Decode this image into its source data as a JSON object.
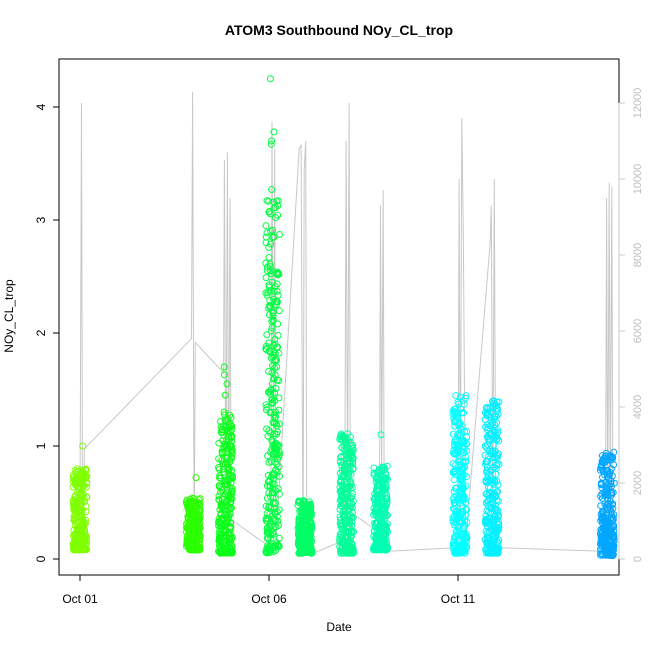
{
  "chart_data": {
    "type": "scatter",
    "title": "ATOM3 Southbound NOy_CL_trop",
    "xlabel": "Date",
    "ylabel": "NOy_CL_trop",
    "x_ticks": [
      "Oct 01",
      "Oct 06",
      "Oct 11"
    ],
    "y_ticks": [
      "0",
      "1",
      "2",
      "3",
      "4"
    ],
    "ylim": [
      0,
      4.3
    ],
    "right_axis": {
      "description": "altitude trace (grey line), unlabeled",
      "ticks": [
        "0",
        "2000",
        "4000",
        "6000",
        "8000",
        "10000",
        "12000"
      ],
      "ylim": [
        0,
        12500
      ],
      "color": "#c8c8c8"
    },
    "grid": false,
    "flights": [
      {
        "date": "2016-10-01",
        "day": 1.0,
        "min": 0.08,
        "max": 1.07,
        "outliers": [
          1.0
        ],
        "color": "#7fff00"
      },
      {
        "date": "2016-10-04",
        "day": 4.0,
        "min": 0.08,
        "max": 0.72,
        "outliers": [
          0.72
        ],
        "color": "#2bff00"
      },
      {
        "date": "2016-10-05",
        "day": 4.85,
        "min": 0.05,
        "max": 1.7,
        "outliers": [
          1.3,
          1.45,
          1.55,
          1.63,
          1.7
        ],
        "color": "#0aff1a"
      },
      {
        "date": "2016-10-06",
        "day": 6.1,
        "min": 0.05,
        "max": 4.25,
        "outliers": [
          1.0,
          1.3,
          1.5,
          1.65,
          1.9,
          2.15,
          2.3,
          2.37,
          2.45,
          3.27,
          3.67,
          3.7,
          3.78,
          4.25
        ],
        "color": "#00ff40"
      },
      {
        "date": "2016-10-07",
        "day": 6.95,
        "min": 0.05,
        "max": 0.52,
        "outliers": [],
        "color": "#00ff66"
      },
      {
        "date": "2016-10-08",
        "day": 8.05,
        "min": 0.05,
        "max": 1.12,
        "outliers": [],
        "color": "#00ff99"
      },
      {
        "date": "2016-10-09",
        "day": 8.95,
        "min": 0.08,
        "max": 1.1,
        "outliers": [
          1.1
        ],
        "color": "#00ffb3"
      },
      {
        "date": "2016-10-11",
        "day": 11.05,
        "min": 0.05,
        "max": 1.45,
        "outliers": [],
        "color": "#00ffff"
      },
      {
        "date": "2016-10-12",
        "day": 11.9,
        "min": 0.05,
        "max": 1.42,
        "outliers": [],
        "color": "#00f0ff"
      },
      {
        "date": "2016-10-14",
        "day": 14.95,
        "min": 0.03,
        "max": 0.95,
        "outliers": [],
        "color": "#00a6ff"
      }
    ],
    "altitude_trace": [
      [
        1.0,
        1200
      ],
      [
        1.04,
        12000
      ],
      [
        1.07,
        300
      ],
      [
        1.12,
        2900
      ],
      [
        3.95,
        5800
      ],
      [
        3.98,
        12300
      ],
      [
        4.02,
        300
      ],
      [
        4.05,
        5700
      ],
      [
        4.8,
        4900
      ],
      [
        4.82,
        10500
      ],
      [
        4.86,
        900
      ],
      [
        4.9,
        10700
      ],
      [
        4.93,
        1200
      ],
      [
        4.97,
        9500
      ],
      [
        5.0,
        200
      ],
      [
        5.05,
        1000
      ],
      [
        6.05,
        300
      ],
      [
        6.08,
        11500
      ],
      [
        6.12,
        2700
      ],
      [
        6.15,
        10800
      ],
      [
        6.18,
        400
      ],
      [
        6.8,
        10800
      ],
      [
        6.85,
        10900
      ],
      [
        6.9,
        200
      ],
      [
        6.93,
        10200
      ],
      [
        6.97,
        11000
      ],
      [
        7.0,
        300
      ],
      [
        7.05,
        100
      ],
      [
        8.0,
        500
      ],
      [
        8.04,
        11000
      ],
      [
        8.08,
        1500
      ],
      [
        8.12,
        12000
      ],
      [
        8.16,
        400
      ],
      [
        8.2,
        1200
      ],
      [
        8.92,
        700
      ],
      [
        8.95,
        9300
      ],
      [
        8.98,
        2200
      ],
      [
        9.02,
        9700
      ],
      [
        9.05,
        300
      ],
      [
        9.1,
        200
      ],
      [
        11.0,
        300
      ],
      [
        11.03,
        10000
      ],
      [
        11.06,
        1200
      ],
      [
        11.1,
        11600
      ],
      [
        11.14,
        8600
      ],
      [
        11.2,
        400
      ],
      [
        11.85,
        8300
      ],
      [
        11.88,
        9300
      ],
      [
        11.92,
        1300
      ],
      [
        11.96,
        10000
      ],
      [
        12.0,
        200
      ],
      [
        12.05,
        300
      ],
      [
        14.9,
        200
      ],
      [
        14.93,
        9500
      ],
      [
        14.96,
        900
      ],
      [
        15.0,
        9900
      ],
      [
        15.03,
        1500
      ],
      [
        15.07,
        9800
      ],
      [
        15.1,
        200
      ]
    ]
  }
}
